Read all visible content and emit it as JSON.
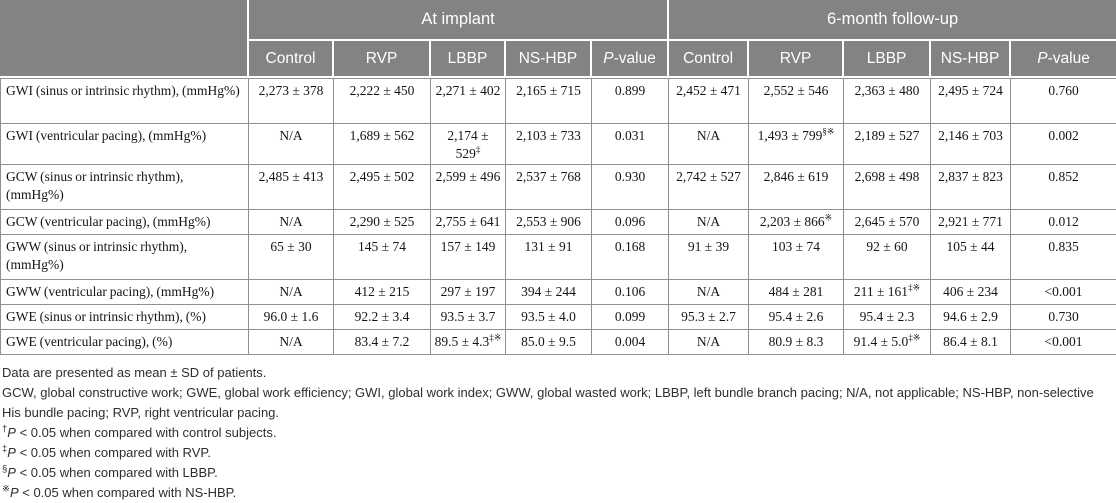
{
  "table": {
    "group_headers": [
      {
        "label": "At implant",
        "span": 5
      },
      {
        "label": "6-month follow-up",
        "span": 5
      }
    ],
    "column_headers": [
      {
        "label": "Control"
      },
      {
        "label": "RVP"
      },
      {
        "label": "LBBP"
      },
      {
        "label": "NS-HBP"
      },
      {
        "label": "P-value",
        "italic_first": true
      },
      {
        "label": "Control"
      },
      {
        "label": "RVP"
      },
      {
        "label": "LBBP"
      },
      {
        "label": "NS-HBP"
      },
      {
        "label": "P-value",
        "italic_first": true
      }
    ],
    "rows": [
      {
        "label": "GWI (sinus or intrinsic rhythm), (mmHg%)",
        "tall": true,
        "cells": [
          {
            "text": "2,273 ± 378"
          },
          {
            "text": "2,222 ± 450"
          },
          {
            "text": "2,271 ± 402"
          },
          {
            "text": "2,165 ± 715"
          },
          {
            "text": "0.899"
          },
          {
            "text": "2,452 ± 471"
          },
          {
            "text": "2,552 ± 546"
          },
          {
            "text": "2,363 ± 480"
          },
          {
            "text": "2,495 ± 724"
          },
          {
            "text": "0.760"
          }
        ]
      },
      {
        "label": "GWI (ventricular pacing), (mmHg%)",
        "tall": false,
        "cells": [
          {
            "text": "N/A"
          },
          {
            "text": "1,689 ± 562"
          },
          {
            "text": "2,174 ± 529",
            "sup": "‡"
          },
          {
            "text": "2,103 ± 733"
          },
          {
            "text": "0.031"
          },
          {
            "text": "N/A"
          },
          {
            "text": "1,493 ± 799",
            "sup": "§※"
          },
          {
            "text": "2,189 ± 527"
          },
          {
            "text": "2,146 ± 703"
          },
          {
            "text": "0.002"
          }
        ]
      },
      {
        "label": "GCW (sinus or intrinsic rhythm), (mmHg%)",
        "tall": true,
        "cells": [
          {
            "text": "2,485 ± 413"
          },
          {
            "text": "2,495 ± 502"
          },
          {
            "text": "2,599 ± 496"
          },
          {
            "text": "2,537 ± 768"
          },
          {
            "text": "0.930"
          },
          {
            "text": "2,742 ± 527"
          },
          {
            "text": "2,846 ± 619"
          },
          {
            "text": "2,698 ± 498"
          },
          {
            "text": "2,837 ± 823"
          },
          {
            "text": "0.852"
          }
        ]
      },
      {
        "label": "GCW (ventricular pacing), (mmHg%)",
        "tall": false,
        "cells": [
          {
            "text": "N/A"
          },
          {
            "text": "2,290 ± 525"
          },
          {
            "text": "2,755 ± 641"
          },
          {
            "text": "2,553 ± 906"
          },
          {
            "text": "0.096"
          },
          {
            "text": "N/A"
          },
          {
            "text": "2,203 ± 866",
            "sup": "※"
          },
          {
            "text": "2,645 ± 570"
          },
          {
            "text": "2,921 ± 771"
          },
          {
            "text": "0.012"
          }
        ]
      },
      {
        "label": "GWW (sinus or intrinsic rhythm), (mmHg%)",
        "tall": true,
        "cells": [
          {
            "text": "65 ± 30"
          },
          {
            "text": "145 ± 74"
          },
          {
            "text": "157 ± 149"
          },
          {
            "text": "131 ± 91"
          },
          {
            "text": "0.168"
          },
          {
            "text": "91 ± 39"
          },
          {
            "text": "103 ± 74"
          },
          {
            "text": "92 ± 60"
          },
          {
            "text": "105 ± 44"
          },
          {
            "text": "0.835"
          }
        ]
      },
      {
        "label": "GWW (ventricular pacing), (mmHg%)",
        "tall": false,
        "cells": [
          {
            "text": "N/A"
          },
          {
            "text": "412 ± 215"
          },
          {
            "text": "297 ± 197"
          },
          {
            "text": "394 ± 244"
          },
          {
            "text": "0.106"
          },
          {
            "text": "N/A"
          },
          {
            "text": "484 ± 281"
          },
          {
            "text": "211 ± 161",
            "sup": "‡※"
          },
          {
            "text": "406 ± 234"
          },
          {
            "text": "<0.001"
          }
        ]
      },
      {
        "label": "GWE (sinus or intrinsic rhythm), (%)",
        "tall": false,
        "cells": [
          {
            "text": "96.0 ± 1.6"
          },
          {
            "text": "92.2 ± 3.4"
          },
          {
            "text": "93.5 ± 3.7"
          },
          {
            "text": "93.5 ± 4.0"
          },
          {
            "text": "0.099"
          },
          {
            "text": "95.3 ± 2.7"
          },
          {
            "text": "95.4 ± 2.6"
          },
          {
            "text": "95.4 ± 2.3"
          },
          {
            "text": "94.6 ± 2.9"
          },
          {
            "text": "0.730"
          }
        ]
      },
      {
        "label": "GWE (ventricular pacing), (%)",
        "tall": false,
        "cells": [
          {
            "text": "N/A"
          },
          {
            "text": "83.4 ± 7.2"
          },
          {
            "text": "89.5 ± 4.3",
            "sup": "‡※"
          },
          {
            "text": "85.0 ± 9.5"
          },
          {
            "text": "0.004"
          },
          {
            "text": "N/A"
          },
          {
            "text": "80.9 ± 8.3"
          },
          {
            "text": "91.4 ± 5.0",
            "sup": "‡※"
          },
          {
            "text": "86.4 ± 8.1"
          },
          {
            "text": "<0.001"
          }
        ]
      }
    ]
  },
  "footnotes": {
    "general": [
      "Data are presented as mean ± SD of patients.",
      "GCW, global constructive work; GWE, global work efficiency; GWI, global work index; GWW, global wasted work; LBBP, left bundle branch pacing; N/A, not applicable; NS-HBP, non-selective His bundle pacing; RVP, right ventricular pacing."
    ],
    "significance": [
      {
        "marker": "†",
        "p": "P",
        "text": "< 0.05 when compared with control subjects."
      },
      {
        "marker": "‡",
        "p": "P",
        "text": "< 0.05 when compared with RVP."
      },
      {
        "marker": "§",
        "p": "P",
        "text": "< 0.05 when compared with LBBP."
      },
      {
        "marker": "※",
        "p": "P",
        "text": "< 0.05 when compared with NS-HBP."
      }
    ]
  },
  "colors": {
    "header_bg": "#838383",
    "header_text": "#ffffff",
    "body_border": "#8f8f8f",
    "body_text": "#151515",
    "footnote_text": "#2e2e2e"
  }
}
